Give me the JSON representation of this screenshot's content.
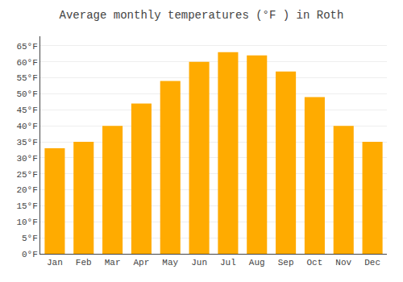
{
  "chart_data": {
    "type": "bar",
    "title": "Average monthly temperatures (°F ) in Roth",
    "categories": [
      "Jan",
      "Feb",
      "Mar",
      "Apr",
      "May",
      "Jun",
      "Jul",
      "Aug",
      "Sep",
      "Oct",
      "Nov",
      "Dec"
    ],
    "values": [
      33,
      35,
      40,
      47,
      54,
      60,
      63,
      62,
      57,
      49,
      40,
      35
    ],
    "color": "#FFAB00",
    "ylim": [
      0,
      68
    ],
    "yticks": [
      {
        "value": 0,
        "label": "0°F"
      },
      {
        "value": 5,
        "label": "5°F"
      },
      {
        "value": 10,
        "label": "10°F"
      },
      {
        "value": 15,
        "label": "15°F"
      },
      {
        "value": 20,
        "label": "20°F"
      },
      {
        "value": 25,
        "label": "25°F"
      },
      {
        "value": 30,
        "label": "30°F"
      },
      {
        "value": 35,
        "label": "35°F"
      },
      {
        "value": 40,
        "label": "40°F"
      },
      {
        "value": 45,
        "label": "45°F"
      },
      {
        "value": 50,
        "label": "50°F"
      },
      {
        "value": 55,
        "label": "55°F"
      },
      {
        "value": 60,
        "label": "60°F"
      },
      {
        "value": 65,
        "label": "65°F"
      }
    ],
    "grid": true
  }
}
